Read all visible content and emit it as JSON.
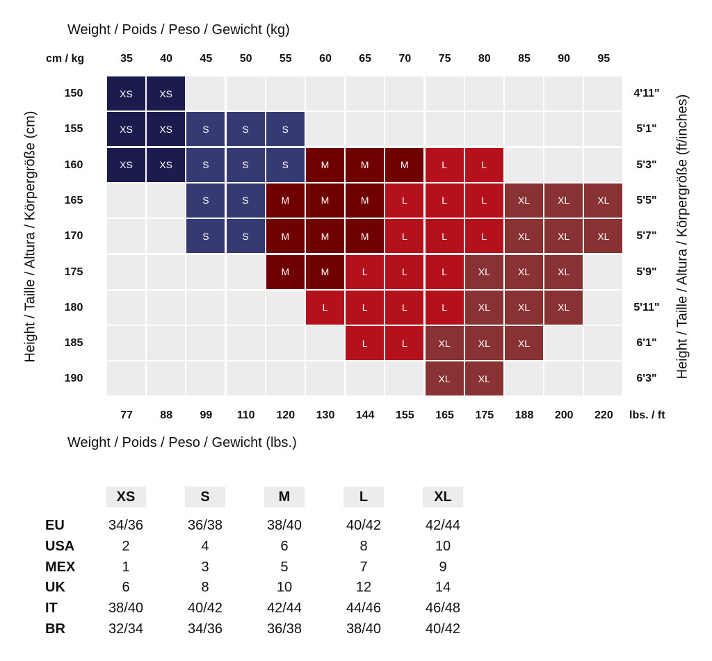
{
  "chart_data": {
    "type": "heatmap",
    "title_top": "Weight / Poids / Peso / Gewicht (kg)",
    "title_bottom": "Weight / Poids / Peso / Gewicht (lbs.)",
    "left_axis_label": "Height / Taille / Altura / Körpergröße (cm)",
    "right_axis_label": "Height / Taille / Altura / Körpergröße (ft/inches)",
    "corner_top": "cm / kg",
    "corner_bottom": "lbs. / ft",
    "kg": [
      "35",
      "40",
      "45",
      "50",
      "55",
      "60",
      "65",
      "70",
      "75",
      "80",
      "85",
      "90",
      "95"
    ],
    "lbs": [
      "77",
      "88",
      "99",
      "110",
      "120",
      "130",
      "144",
      "155",
      "165",
      "175",
      "188",
      "200",
      "220"
    ],
    "cm": [
      "150",
      "155",
      "160",
      "165",
      "170",
      "175",
      "180",
      "185",
      "190"
    ],
    "ft": [
      "4'11\"",
      "5'1\"",
      "5'3\"",
      "5'5\"",
      "5'7\"",
      "5'9\"",
      "5'11\"",
      "6'1\"",
      "6'3\""
    ],
    "colors": {
      "XS": "#1b1b4d",
      "S": "#353a72",
      "M": "#700000",
      "L": "#b4111c",
      "XL": "#883234",
      "empty": "#ececec"
    },
    "grid": [
      [
        "XS",
        "XS",
        "",
        "",
        "",
        "",
        "",
        "",
        "",
        "",
        "",
        "",
        ""
      ],
      [
        "XS",
        "XS",
        "S",
        "S",
        "S",
        "",
        "",
        "",
        "",
        "",
        "",
        "",
        ""
      ],
      [
        "XS",
        "XS",
        "S",
        "S",
        "S",
        "M",
        "M",
        "M",
        "L",
        "L",
        "",
        "",
        ""
      ],
      [
        "",
        "",
        "S",
        "S",
        "M",
        "M",
        "M",
        "L",
        "L",
        "L",
        "XL",
        "XL",
        "XL"
      ],
      [
        "",
        "",
        "S",
        "S",
        "M",
        "M",
        "M",
        "L",
        "L",
        "L",
        "XL",
        "XL",
        "XL"
      ],
      [
        "",
        "",
        "",
        "",
        "M",
        "M",
        "L",
        "L",
        "L",
        "XL",
        "XL",
        "XL",
        ""
      ],
      [
        "",
        "",
        "",
        "",
        "",
        "L",
        "L",
        "L",
        "L",
        "XL",
        "XL",
        "XL",
        ""
      ],
      [
        "",
        "",
        "",
        "",
        "",
        "",
        "L",
        "L",
        "XL",
        "XL",
        "XL",
        "",
        ""
      ],
      [
        "",
        "",
        "",
        "",
        "",
        "",
        "",
        "",
        "XL",
        "XL",
        "",
        "",
        ""
      ]
    ]
  },
  "size_table": {
    "headers": [
      "XS",
      "S",
      "M",
      "L",
      "XL"
    ],
    "rows": [
      {
        "label": "EU",
        "values": [
          "34/36",
          "36/38",
          "38/40",
          "40/42",
          "42/44"
        ]
      },
      {
        "label": "USA",
        "values": [
          "2",
          "4",
          "6",
          "8",
          "10"
        ]
      },
      {
        "label": "MEX",
        "values": [
          "1",
          "3",
          "5",
          "7",
          "9"
        ]
      },
      {
        "label": "UK",
        "values": [
          "6",
          "8",
          "10",
          "12",
          "14"
        ]
      },
      {
        "label": "IT",
        "values": [
          "38/40",
          "40/42",
          "42/44",
          "44/46",
          "46/48"
        ]
      },
      {
        "label": "BR",
        "values": [
          "32/34",
          "34/36",
          "36/38",
          "38/40",
          "40/42"
        ]
      }
    ]
  }
}
